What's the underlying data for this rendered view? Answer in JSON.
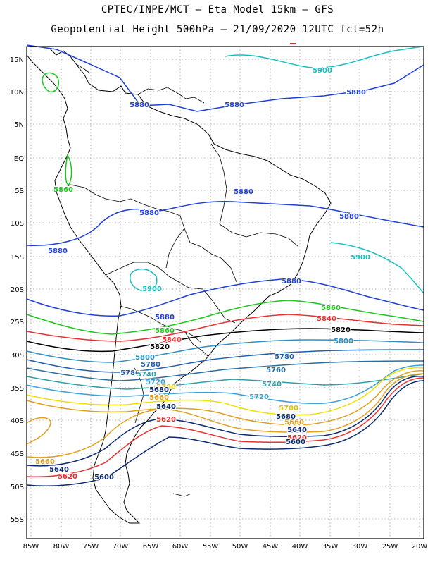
{
  "title_line1": "CPTEC/INPE/MCT –  Eta Model 15km – GFS",
  "title_line2": "Geopotential Height 500hPa – 21/09/2020 12UTC fct=52h",
  "lat_ticks": [
    "15N",
    "10N",
    "5N",
    "EQ",
    "5S",
    "10S",
    "15S",
    "20S",
    "25S",
    "30S",
    "35S",
    "40S",
    "45S",
    "50S",
    "55S"
  ],
  "lon_ticks": [
    "85W",
    "80W",
    "75W",
    "70W",
    "65W",
    "60W",
    "55W",
    "50W",
    "45W",
    "40W",
    "35W",
    "30W",
    "25W",
    "20W"
  ],
  "contours": [
    {
      "level": "5900",
      "color": "#18c0c0"
    },
    {
      "level": "5880",
      "color": "#1f3fd8"
    },
    {
      "level": "5860",
      "color": "#18c818"
    },
    {
      "level": "5840",
      "color": "#e83030"
    },
    {
      "level": "5820",
      "color": "#000000"
    },
    {
      "level": "5800",
      "color": "#2f8fc0"
    },
    {
      "level": "5780",
      "color": "#1f5fb0"
    },
    {
      "level": "5760",
      "color": "#2a6f9f"
    },
    {
      "level": "5740",
      "color": "#2ea0a8"
    },
    {
      "level": "5720",
      "color": "#3aa0d8"
    },
    {
      "level": "5700",
      "color": "#f0e000"
    },
    {
      "level": "5680",
      "color": "#e0a020"
    },
    {
      "level": "5660",
      "color": "#e0a020"
    },
    {
      "level": "5640",
      "color": "#0a2a70"
    },
    {
      "level": "5620",
      "color": "#e83030"
    },
    {
      "level": "5600",
      "color": "#0a2a70"
    }
  ],
  "contour_labels": [
    {
      "text": "5900",
      "color": "#18c0c0"
    },
    {
      "text": "5880",
      "color": "#1f3fd8"
    },
    {
      "text": "5880",
      "color": "#1f3fd8"
    },
    {
      "text": "5880",
      "color": "#1f3fd8"
    },
    {
      "text": "5880",
      "color": "#1f3fd8"
    },
    {
      "text": "5880",
      "color": "#1f3fd8"
    },
    {
      "text": "5880",
      "color": "#1f3fd8"
    },
    {
      "text": "5880",
      "color": "#1f3fd8"
    },
    {
      "text": "5880",
      "color": "#1f3fd8"
    },
    {
      "text": "5880",
      "color": "#1f3fd8"
    },
    {
      "text": "5860",
      "color": "#18c818"
    },
    {
      "text": "5900",
      "color": "#18c0c0"
    },
    {
      "text": "5900",
      "color": "#18c0c0"
    },
    {
      "text": "5860",
      "color": "#18c818"
    },
    {
      "text": "5860",
      "color": "#18c818"
    },
    {
      "text": "5840",
      "color": "#e83030"
    },
    {
      "text": "5840",
      "color": "#e83030"
    },
    {
      "text": "5820",
      "color": "#000000"
    },
    {
      "text": "5820",
      "color": "#000000"
    },
    {
      "text": "5800",
      "color": "#2f8fc0"
    },
    {
      "text": "5800",
      "color": "#2f8fc0"
    },
    {
      "text": "5780",
      "color": "#1f5fb0"
    },
    {
      "text": "5780",
      "color": "#1f5fb0"
    },
    {
      "text": "5780",
      "color": "#1f5fb0"
    },
    {
      "text": "5760",
      "color": "#2a6f9f"
    },
    {
      "text": "5740",
      "color": "#2ea0a8"
    },
    {
      "text": "5740",
      "color": "#2ea0a8"
    },
    {
      "text": "5720",
      "color": "#3aa0d8"
    },
    {
      "text": "5720",
      "color": "#3aa0d8"
    },
    {
      "text": "5700",
      "color": "#d8c800"
    },
    {
      "text": "5700",
      "color": "#d8c800"
    },
    {
      "text": "5680",
      "color": "#0a2a70"
    },
    {
      "text": "5680",
      "color": "#0a2a70"
    },
    {
      "text": "5660",
      "color": "#e0a020"
    },
    {
      "text": "5660",
      "color": "#e0a020"
    },
    {
      "text": "5660",
      "color": "#e0a020"
    },
    {
      "text": "5640",
      "color": "#0a2a70"
    },
    {
      "text": "5640",
      "color": "#0a2a70"
    },
    {
      "text": "5640",
      "color": "#0a2a70"
    },
    {
      "text": "5620",
      "color": "#e83030"
    },
    {
      "text": "5620",
      "color": "#e83030"
    },
    {
      "text": "5620",
      "color": "#e83030"
    },
    {
      "text": "5600",
      "color": "#0a2a70"
    },
    {
      "text": "5600",
      "color": "#0a2a70"
    }
  ]
}
